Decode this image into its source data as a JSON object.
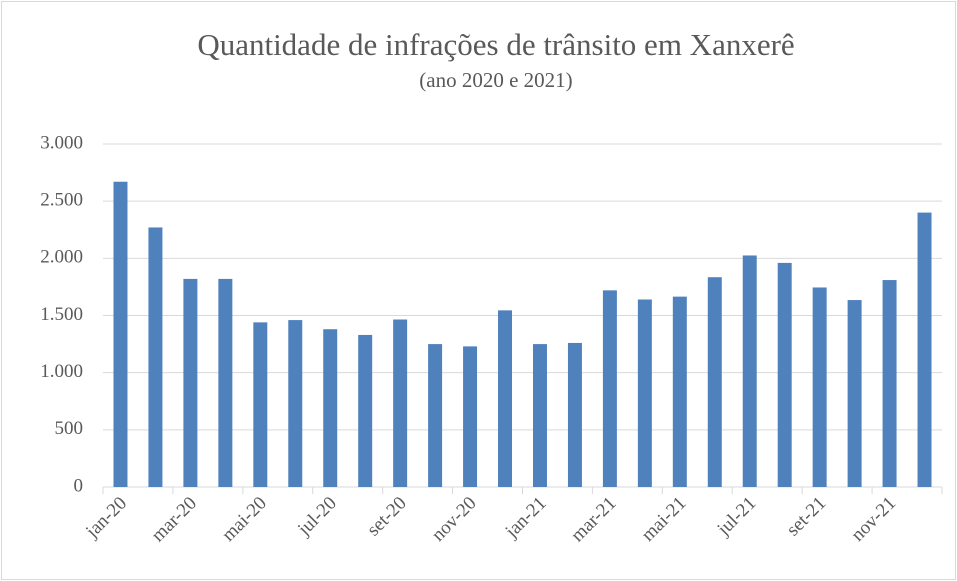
{
  "chart_data": {
    "type": "bar",
    "title": "Quantidade de infrações de trânsito em Xanxerê",
    "subtitle": "(ano 2020 e 2021)",
    "categories": [
      "jan-20",
      null,
      "mar-20",
      null,
      "mai-20",
      null,
      "jul-20",
      null,
      "set-20",
      null,
      "nov-20",
      null,
      "jan-21",
      null,
      "mar-21",
      null,
      "mai-21",
      null,
      "jul-21",
      null,
      "set-21",
      null,
      "nov-21",
      null
    ],
    "values": [
      2670,
      2270,
      1820,
      1820,
      1440,
      1460,
      1380,
      1330,
      1465,
      1250,
      1230,
      1545,
      1250,
      1260,
      1720,
      1640,
      1665,
      1835,
      2025,
      1960,
      1745,
      1635,
      1810,
      2400
    ],
    "color": "#4f81bd",
    "ylim": [
      0,
      3000
    ],
    "yticks": [
      0,
      500,
      {
        "value": 1000,
        "label": "1.000"
      },
      {
        "value": 1500,
        "label": "1.500"
      },
      {
        "value": 2000,
        "label": "2.000"
      },
      {
        "value": 2500,
        "label": "2.500"
      },
      {
        "value": 3000,
        "label": "3.000"
      }
    ],
    "grid": true
  }
}
